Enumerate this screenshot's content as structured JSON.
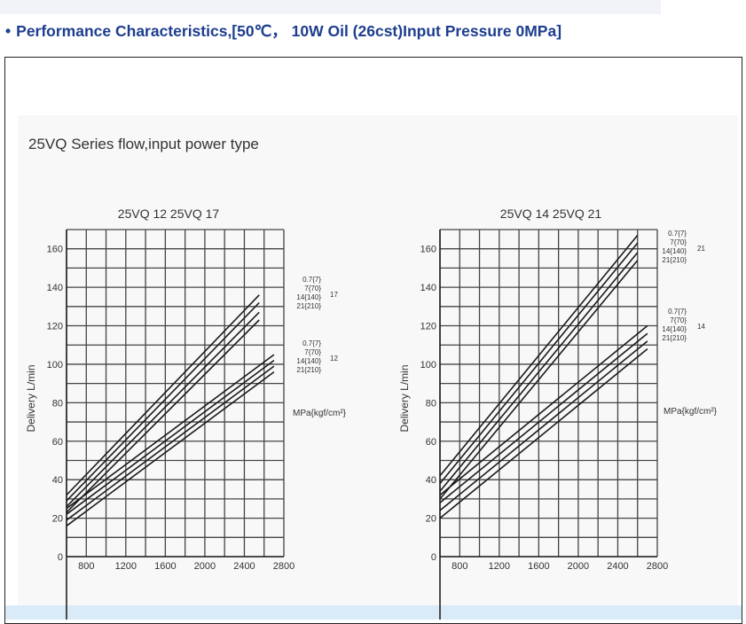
{
  "page": {
    "heading": "Performance Characteristics,[50℃， 10W Oil (26cst)Input Pressure 0MPa]",
    "bullet_icon": "bullet-dot",
    "subtitle": "25VQ Series flow,input power type",
    "heading_color": "#1d3d8f"
  },
  "chart_data": [
    {
      "type": "line",
      "title": "25VQ 12  25VQ 17",
      "ylabel": "Delivery L/min",
      "xlabel": "",
      "xlim": [
        600,
        2800
      ],
      "ylim": [
        0,
        170
      ],
      "xticks": [
        800,
        1200,
        1600,
        2000,
        2400,
        2800
      ],
      "yticks": [
        0,
        20,
        40,
        60,
        80,
        100,
        120,
        140,
        160
      ],
      "grid": true,
      "unit_label": "MPa{kgf/cm²}",
      "groups": [
        {
          "label": "17",
          "series": [
            {
              "name": "0.7{7}",
              "x": [
                600,
                2550
              ],
              "y": [
                32,
                136
              ]
            },
            {
              "name": "7{70}",
              "x": [
                600,
                2550
              ],
              "y": [
                29,
                132
              ]
            },
            {
              "name": "14{140}",
              "x": [
                600,
                2550
              ],
              "y": [
                26,
                127
              ]
            },
            {
              "name": "21{210}",
              "x": [
                600,
                2550
              ],
              "y": [
                23,
                123
              ]
            }
          ]
        },
        {
          "label": "12",
          "series": [
            {
              "name": "0.7{7}",
              "x": [
                600,
                2700
              ],
              "y": [
                25,
                105
              ]
            },
            {
              "name": "7{70}",
              "x": [
                600,
                2700
              ],
              "y": [
                22,
                102
              ]
            },
            {
              "name": "14{140}",
              "x": [
                600,
                2700
              ],
              "y": [
                19,
                99
              ]
            },
            {
              "name": "21{210}",
              "x": [
                600,
                2700
              ],
              "y": [
                16,
                96
              ]
            }
          ]
        }
      ]
    },
    {
      "type": "line",
      "title": "25VQ 14  25VQ 21",
      "ylabel": "Delivery L/min",
      "xlabel": "",
      "xlim": [
        600,
        2800
      ],
      "ylim": [
        0,
        170
      ],
      "xticks": [
        800,
        1200,
        1600,
        2000,
        2400,
        2800
      ],
      "yticks": [
        0,
        20,
        40,
        60,
        80,
        100,
        120,
        140,
        160
      ],
      "grid": true,
      "unit_label": "MPa{kgf/cm²}",
      "groups": [
        {
          "label": "21",
          "series": [
            {
              "name": "0.7{7}",
              "x": [
                600,
                2600
              ],
              "y": [
                42,
                167
              ]
            },
            {
              "name": "7{70}",
              "x": [
                600,
                2600
              ],
              "y": [
                38,
                163
              ]
            },
            {
              "name": "14{140}",
              "x": [
                600,
                2600
              ],
              "y": [
                34,
                158
              ]
            },
            {
              "name": "21{210}",
              "x": [
                600,
                2600
              ],
              "y": [
                30,
                154
              ]
            }
          ]
        },
        {
          "label": "14",
          "series": [
            {
              "name": "0.7{7}",
              "x": [
                600,
                2700
              ],
              "y": [
                32,
                120
              ]
            },
            {
              "name": "7{70}",
              "x": [
                600,
                2700
              ],
              "y": [
                28,
                116
              ]
            },
            {
              "name": "14{140}",
              "x": [
                600,
                2700
              ],
              "y": [
                24,
                112
              ]
            },
            {
              "name": "21{210}",
              "x": [
                600,
                2700
              ],
              "y": [
                20,
                108
              ]
            }
          ]
        }
      ]
    }
  ]
}
